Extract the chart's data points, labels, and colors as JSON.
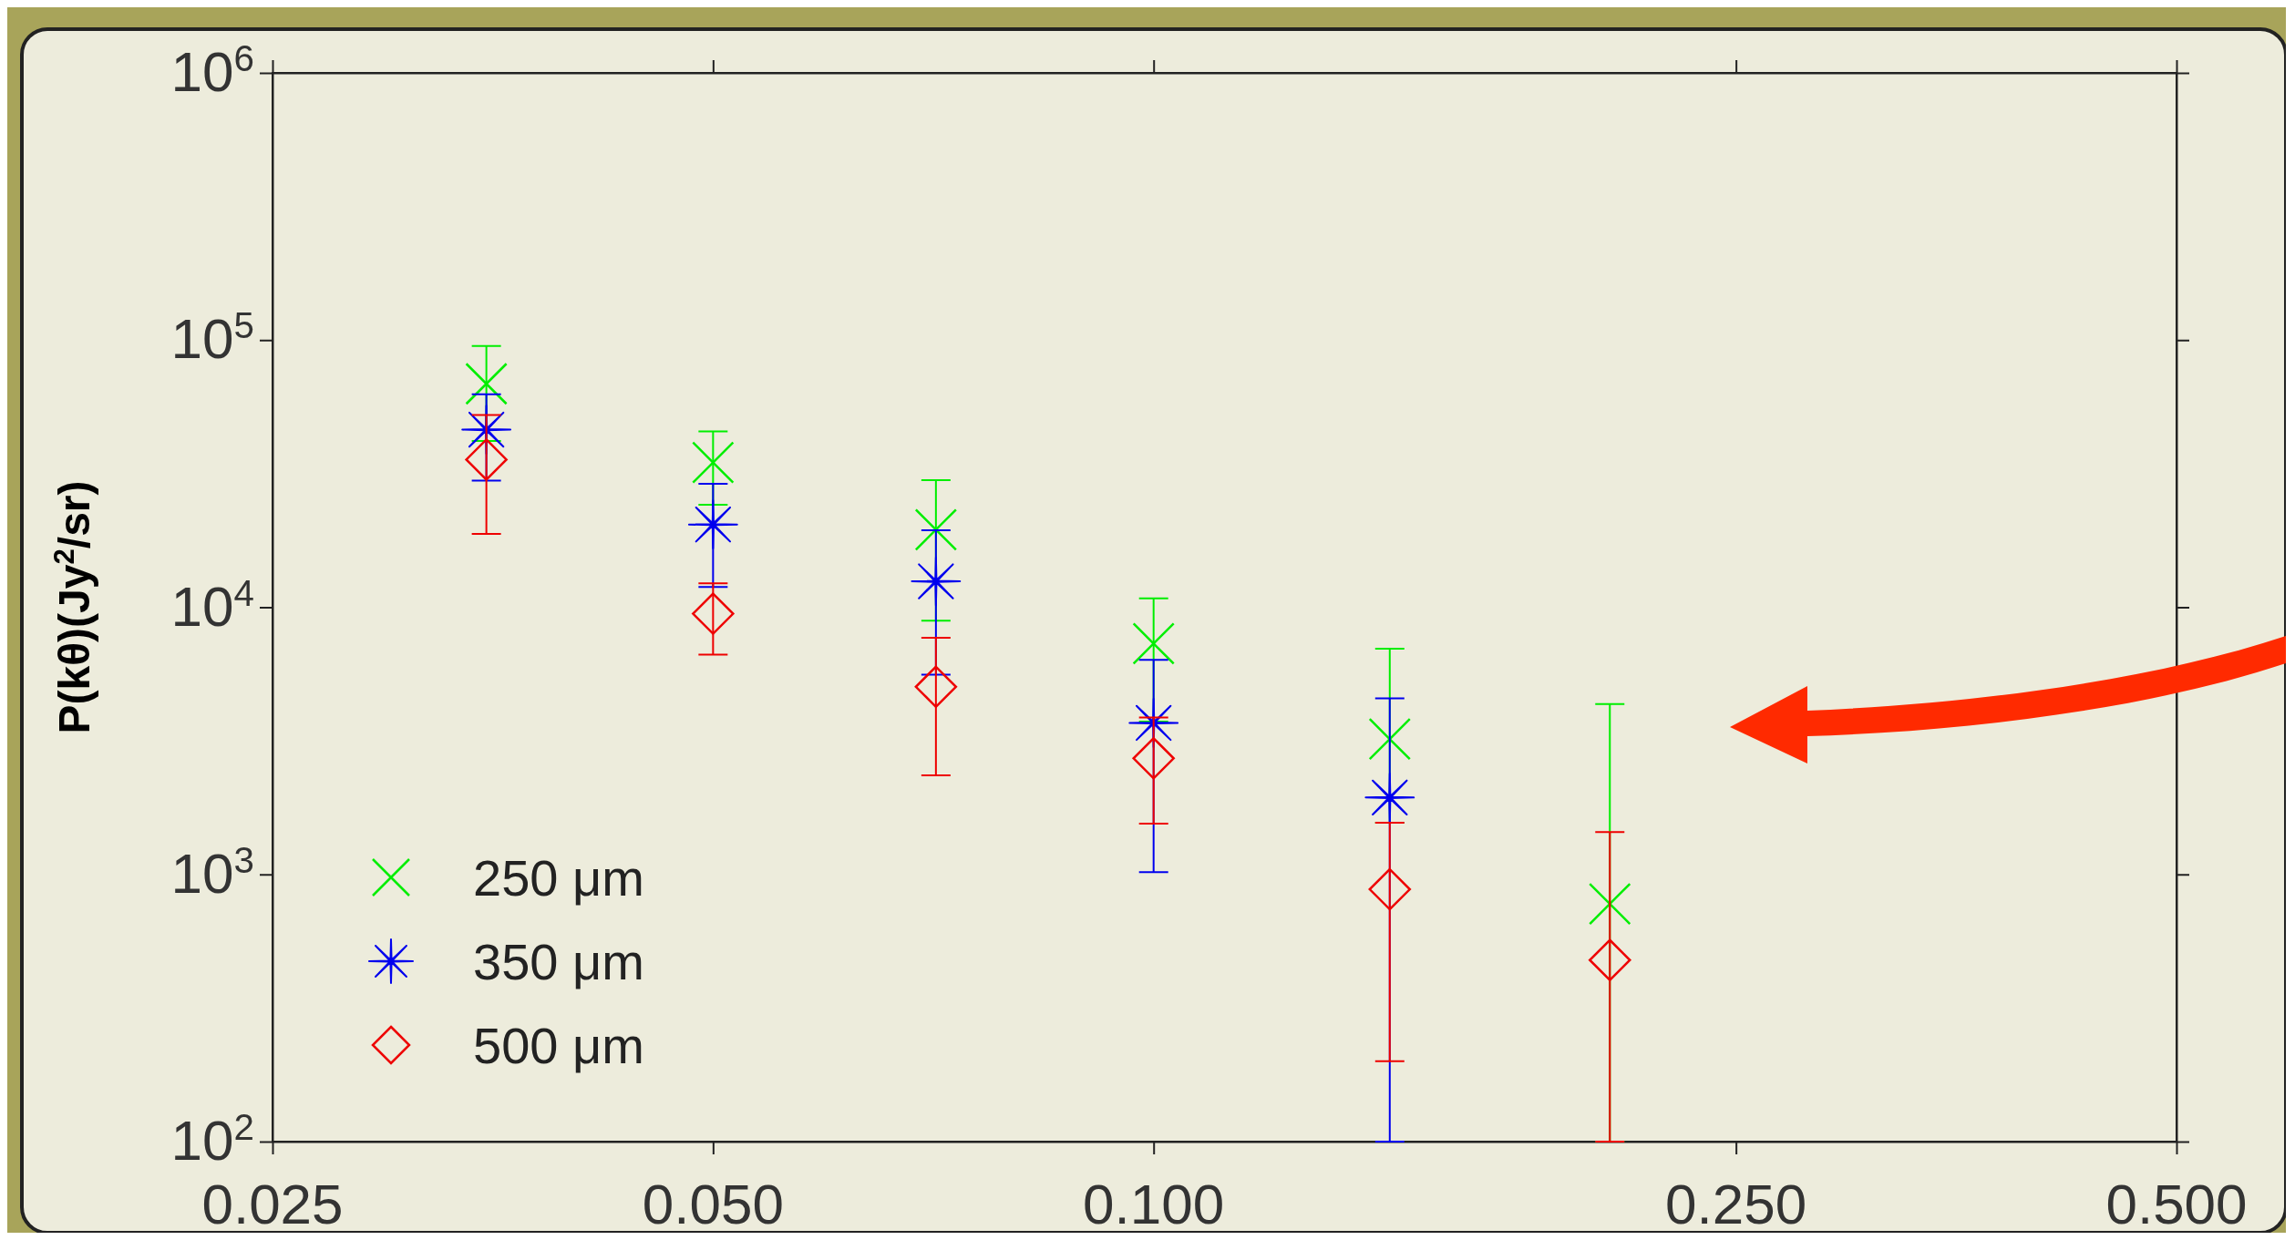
{
  "chart_data": {
    "type": "scatter",
    "ylabel": "P(kθ)(Jy$^{2}$/sr)",
    "x": [
      0.035,
      0.05,
      0.071,
      0.1,
      0.145,
      0.205
    ],
    "log": "xy",
    "xlim": [
      0.025,
      0.5
    ],
    "xticks": [
      {
        "value": 0.025,
        "label": "0.025"
      },
      {
        "value": 0.05,
        "label": "0.050"
      },
      {
        "value": 0.1,
        "label": "0.100"
      },
      {
        "value": 0.25,
        "label": "0.250"
      },
      {
        "value": 0.5,
        "label": "0.500"
      }
    ],
    "ylim": [
      100,
      1000000
    ],
    "yticks": [
      {
        "value": 100,
        "label": "10$^{2}$"
      },
      {
        "value": 1000,
        "label": "10$^{3}$"
      },
      {
        "value": 10000,
        "label": "10$^{4}$"
      },
      {
        "value": 100000,
        "label": "10$^{5}$"
      },
      {
        "value": 1000000,
        "label": "10$^{6}$"
      }
    ],
    "grid": false,
    "legend": "bottom left",
    "series": [
      {
        "name": "250  μm",
        "color": "#00ee00",
        "marker": "cross",
        "values": [
          68600,
          34800,
          19500,
          7310,
          3210,
          776
        ],
        "errors": [
          [
            41900,
            95000
          ],
          [
            24200,
            45500
          ],
          [
            8900,
            29900
          ],
          [
            3730,
            10800
          ],
          [
            1560,
            7000
          ],
          [
            100,
            4340
          ]
        ]
      },
      {
        "name": "350  μm",
        "color": "#0000ee",
        "marker": "star",
        "values": [
          46200,
          20400,
          12500,
          3690,
          1940,
          null
        ],
        "errors": [
          [
            29800,
            62700
          ],
          [
            11900,
            29000
          ],
          [
            5590,
            19400
          ],
          [
            1020,
            6350
          ],
          [
            100,
            4560
          ],
          null
        ]
      },
      {
        "name": "500  μm",
        "color": "#ee0000",
        "marker": "diamond",
        "values": [
          35700,
          9460,
          5040,
          2720,
          880,
          478
        ],
        "errors": [
          [
            18800,
            52400
          ],
          [
            6650,
            12300
          ],
          [
            2350,
            7690
          ],
          [
            1550,
            3870
          ],
          [
            200,
            1560
          ],
          [
            100,
            1440
          ]
        ]
      }
    ]
  }
}
